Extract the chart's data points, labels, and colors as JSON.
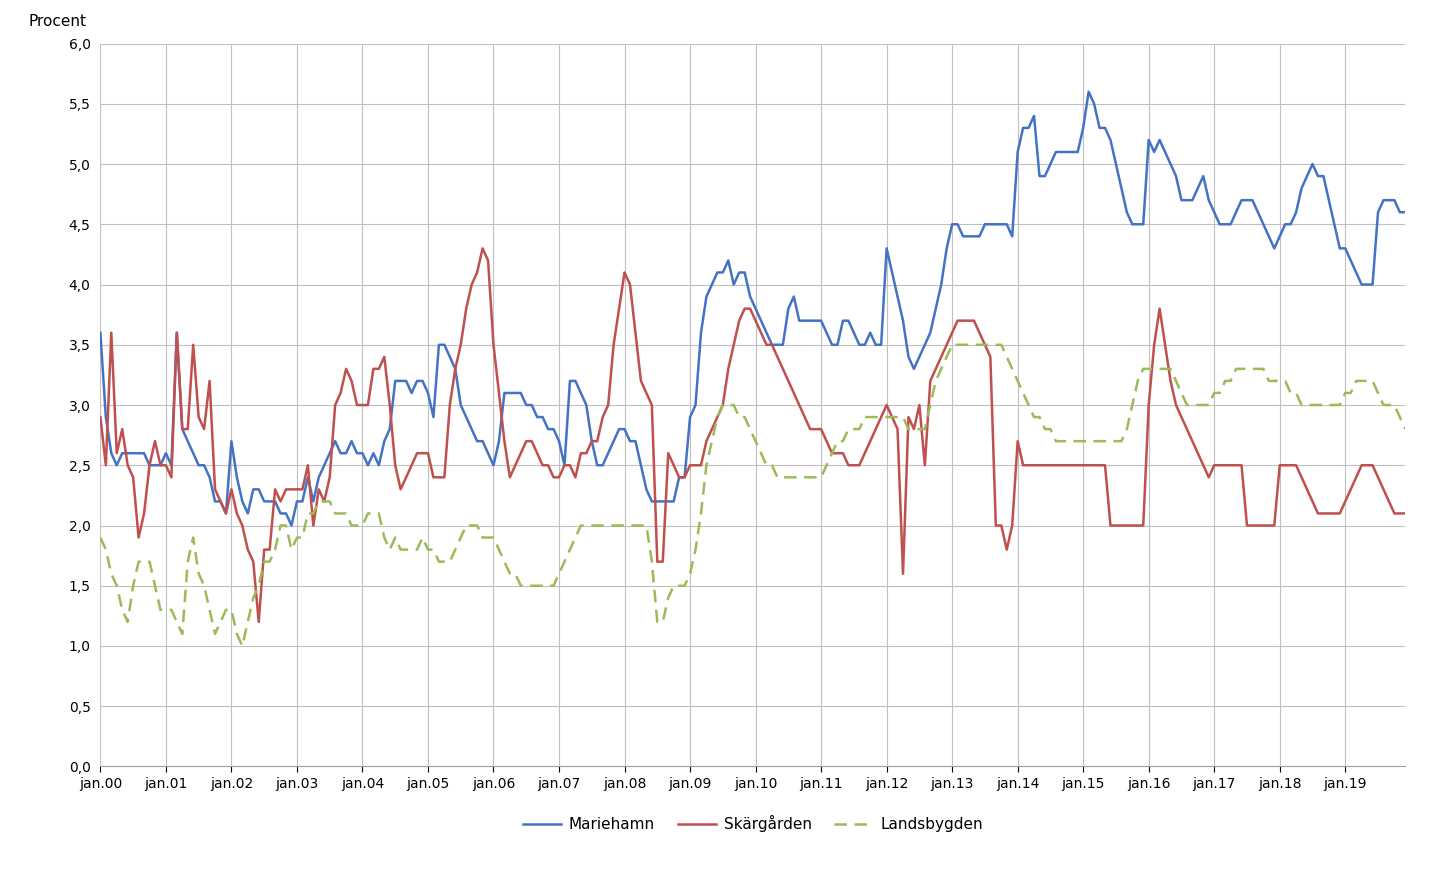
{
  "ylabel": "Procent",
  "ylim": [
    0.0,
    6.0
  ],
  "yticks": [
    0.0,
    0.5,
    1.0,
    1.5,
    2.0,
    2.5,
    3.0,
    3.5,
    4.0,
    4.5,
    5.0,
    5.5,
    6.0
  ],
  "xtick_labels": [
    "jan.00",
    "jan.01",
    "jan.02",
    "jan.03",
    "jan.04",
    "jan.05",
    "jan.06",
    "jan.07",
    "jan.08",
    "jan.09",
    "jan.10",
    "jan.11",
    "jan.12",
    "jan.13",
    "jan.14",
    "jan.15",
    "jan.16",
    "jan.17",
    "jan.18",
    "jan.19"
  ],
  "mariehamn": [
    3.6,
    2.9,
    2.6,
    2.5,
    2.6,
    2.6,
    2.6,
    2.6,
    2.6,
    2.5,
    2.5,
    2.5,
    2.6,
    2.5,
    3.6,
    2.8,
    2.7,
    2.6,
    2.5,
    2.5,
    2.4,
    2.2,
    2.2,
    2.1,
    2.7,
    2.4,
    2.2,
    2.1,
    2.3,
    2.3,
    2.2,
    2.2,
    2.2,
    2.1,
    2.1,
    2.0,
    2.2,
    2.2,
    2.4,
    2.2,
    2.4,
    2.5,
    2.6,
    2.7,
    2.6,
    2.6,
    2.7,
    2.6,
    2.6,
    2.5,
    2.6,
    2.5,
    2.7,
    2.8,
    3.2,
    3.2,
    3.2,
    3.1,
    3.2,
    3.2,
    3.1,
    2.9,
    3.5,
    3.5,
    3.4,
    3.3,
    3.0,
    2.9,
    2.8,
    2.7,
    2.7,
    2.6,
    2.5,
    2.7,
    3.1,
    3.1,
    3.1,
    3.1,
    3.0,
    3.0,
    2.9,
    2.9,
    2.8,
    2.8,
    2.7,
    2.5,
    3.2,
    3.2,
    3.1,
    3.0,
    2.7,
    2.5,
    2.5,
    2.6,
    2.7,
    2.8,
    2.8,
    2.7,
    2.7,
    2.5,
    2.3,
    2.2,
    2.2,
    2.2,
    2.2,
    2.2,
    2.4,
    2.4,
    2.9,
    3.0,
    3.6,
    3.9,
    4.0,
    4.1,
    4.1,
    4.2,
    4.0,
    4.1,
    4.1,
    3.9,
    3.8,
    3.7,
    3.6,
    3.5,
    3.5,
    3.5,
    3.8,
    3.9,
    3.7,
    3.7,
    3.7,
    3.7,
    3.7,
    3.6,
    3.5,
    3.5,
    3.7,
    3.7,
    3.6,
    3.5,
    3.5,
    3.6,
    3.5,
    3.5,
    4.3,
    4.1,
    3.9,
    3.7,
    3.4,
    3.3,
    3.4,
    3.5,
    3.6,
    3.8,
    4.0,
    4.3,
    4.5,
    4.5,
    4.4,
    4.4,
    4.4,
    4.4,
    4.5,
    4.5,
    4.5,
    4.5,
    4.5,
    4.4,
    5.1,
    5.3,
    5.3,
    5.4,
    4.9,
    4.9,
    5.0,
    5.1,
    5.1,
    5.1,
    5.1,
    5.1,
    5.3,
    5.6,
    5.5,
    5.3,
    5.3,
    5.2,
    5.0,
    4.8,
    4.6,
    4.5,
    4.5,
    4.5,
    5.2,
    5.1,
    5.2,
    5.1,
    5.0,
    4.9,
    4.7,
    4.7,
    4.7,
    4.8,
    4.9,
    4.7,
    4.6,
    4.5,
    4.5,
    4.5,
    4.6,
    4.7,
    4.7,
    4.7,
    4.6,
    4.5,
    4.4,
    4.3,
    4.4,
    4.5,
    4.5,
    4.6,
    4.8,
    4.9,
    5.0,
    4.9,
    4.9,
    4.7,
    4.5,
    4.3,
    4.3,
    4.2,
    4.1,
    4.0,
    4.0,
    4.0,
    4.6,
    4.7,
    4.7,
    4.7,
    4.6,
    4.6
  ],
  "skargarden": [
    2.9,
    2.5,
    3.6,
    2.6,
    2.8,
    2.5,
    2.4,
    1.9,
    2.1,
    2.5,
    2.7,
    2.5,
    2.5,
    2.4,
    3.6,
    2.8,
    2.8,
    3.5,
    2.9,
    2.8,
    3.2,
    2.3,
    2.2,
    2.1,
    2.3,
    2.1,
    2.0,
    1.8,
    1.7,
    1.2,
    1.8,
    1.8,
    2.3,
    2.2,
    2.3,
    2.3,
    2.3,
    2.3,
    2.5,
    2.0,
    2.3,
    2.2,
    2.4,
    3.0,
    3.1,
    3.3,
    3.2,
    3.0,
    3.0,
    3.0,
    3.3,
    3.3,
    3.4,
    3.0,
    2.5,
    2.3,
    2.4,
    2.5,
    2.6,
    2.6,
    2.6,
    2.4,
    2.4,
    2.4,
    3.0,
    3.3,
    3.5,
    3.8,
    4.0,
    4.1,
    4.3,
    4.2,
    3.5,
    3.1,
    2.7,
    2.4,
    2.5,
    2.6,
    2.7,
    2.7,
    2.6,
    2.5,
    2.5,
    2.4,
    2.4,
    2.5,
    2.5,
    2.4,
    2.6,
    2.6,
    2.7,
    2.7,
    2.9,
    3.0,
    3.5,
    3.8,
    4.1,
    4.0,
    3.6,
    3.2,
    3.1,
    3.0,
    1.7,
    1.7,
    2.6,
    2.5,
    2.4,
    2.4,
    2.5,
    2.5,
    2.5,
    2.7,
    2.8,
    2.9,
    3.0,
    3.3,
    3.5,
    3.7,
    3.8,
    3.8,
    3.7,
    3.6,
    3.5,
    3.5,
    3.4,
    3.3,
    3.2,
    3.1,
    3.0,
    2.9,
    2.8,
    2.8,
    2.8,
    2.7,
    2.6,
    2.6,
    2.6,
    2.5,
    2.5,
    2.5,
    2.6,
    2.7,
    2.8,
    2.9,
    3.0,
    2.9,
    2.8,
    1.6,
    2.9,
    2.8,
    3.0,
    2.5,
    3.2,
    3.3,
    3.4,
    3.5,
    3.6,
    3.7,
    3.7,
    3.7,
    3.7,
    3.6,
    3.5,
    3.4,
    2.0,
    2.0,
    1.8,
    2.0,
    2.7,
    2.5,
    2.5,
    2.5,
    2.5,
    2.5,
    2.5,
    2.5,
    2.5,
    2.5,
    2.5,
    2.5,
    2.5,
    2.5,
    2.5,
    2.5,
    2.5,
    2.0,
    2.0,
    2.0,
    2.0,
    2.0,
    2.0,
    2.0,
    3.0,
    3.5,
    3.8,
    3.5,
    3.2,
    3.0,
    2.9,
    2.8,
    2.7,
    2.6,
    2.5,
    2.4,
    2.5,
    2.5,
    2.5,
    2.5,
    2.5,
    2.5,
    2.0,
    2.0,
    2.0,
    2.0,
    2.0,
    2.0,
    2.5,
    2.5,
    2.5,
    2.5,
    2.4,
    2.3,
    2.2,
    2.1,
    2.1,
    2.1,
    2.1,
    2.1,
    2.2,
    2.3,
    2.4,
    2.5,
    2.5,
    2.5,
    2.4,
    2.3,
    2.2,
    2.1,
    2.1,
    2.1
  ],
  "landsbygden": [
    1.9,
    1.8,
    1.6,
    1.5,
    1.3,
    1.2,
    1.5,
    1.7,
    1.7,
    1.7,
    1.5,
    1.3,
    1.3,
    1.3,
    1.2,
    1.1,
    1.7,
    1.9,
    1.6,
    1.5,
    1.3,
    1.1,
    1.2,
    1.3,
    1.3,
    1.1,
    1.0,
    1.2,
    1.4,
    1.5,
    1.7,
    1.7,
    1.8,
    2.0,
    2.0,
    1.8,
    1.9,
    1.9,
    2.1,
    2.1,
    2.2,
    2.2,
    2.2,
    2.1,
    2.1,
    2.1,
    2.0,
    2.0,
    2.0,
    2.1,
    2.1,
    2.1,
    1.9,
    1.8,
    1.9,
    1.8,
    1.8,
    1.8,
    1.8,
    1.9,
    1.8,
    1.8,
    1.7,
    1.7,
    1.7,
    1.8,
    1.9,
    2.0,
    2.0,
    2.0,
    1.9,
    1.9,
    1.9,
    1.8,
    1.7,
    1.6,
    1.6,
    1.5,
    1.5,
    1.5,
    1.5,
    1.5,
    1.5,
    1.5,
    1.6,
    1.7,
    1.8,
    1.9,
    2.0,
    2.0,
    2.0,
    2.0,
    2.0,
    2.0,
    2.0,
    2.0,
    2.0,
    2.0,
    2.0,
    2.0,
    2.0,
    1.7,
    1.2,
    1.2,
    1.4,
    1.5,
    1.5,
    1.5,
    1.6,
    1.8,
    2.1,
    2.5,
    2.7,
    2.9,
    3.0,
    3.0,
    3.0,
    2.9,
    2.9,
    2.8,
    2.7,
    2.6,
    2.5,
    2.5,
    2.4,
    2.4,
    2.4,
    2.4,
    2.4,
    2.4,
    2.4,
    2.4,
    2.4,
    2.5,
    2.6,
    2.7,
    2.7,
    2.8,
    2.8,
    2.8,
    2.9,
    2.9,
    2.9,
    2.9,
    2.9,
    2.9,
    2.9,
    2.9,
    2.8,
    2.8,
    2.8,
    2.8,
    3.0,
    3.2,
    3.3,
    3.4,
    3.5,
    3.5,
    3.5,
    3.5,
    3.5,
    3.5,
    3.5,
    3.5,
    3.5,
    3.5,
    3.4,
    3.3,
    3.2,
    3.1,
    3.0,
    2.9,
    2.9,
    2.8,
    2.8,
    2.7,
    2.7,
    2.7,
    2.7,
    2.7,
    2.7,
    2.7,
    2.7,
    2.7,
    2.7,
    2.7,
    2.7,
    2.7,
    2.8,
    3.0,
    3.2,
    3.3,
    3.3,
    3.3,
    3.3,
    3.3,
    3.3,
    3.2,
    3.1,
    3.0,
    3.0,
    3.0,
    3.0,
    3.0,
    3.1,
    3.1,
    3.2,
    3.2,
    3.3,
    3.3,
    3.3,
    3.3,
    3.3,
    3.3,
    3.2,
    3.2,
    3.2,
    3.2,
    3.1,
    3.1,
    3.0,
    3.0,
    3.0,
    3.0,
    3.0,
    3.0,
    3.0,
    3.0,
    3.1,
    3.1,
    3.2,
    3.2,
    3.2,
    3.2,
    3.1,
    3.0,
    3.0,
    3.0,
    2.9,
    2.8
  ],
  "colors": {
    "mariehamn": "#4472C4",
    "skargarden": "#C0504D",
    "landsbygden": "#9BBB59"
  },
  "background_color": "#ffffff",
  "grid_color": "#c0c0c0"
}
